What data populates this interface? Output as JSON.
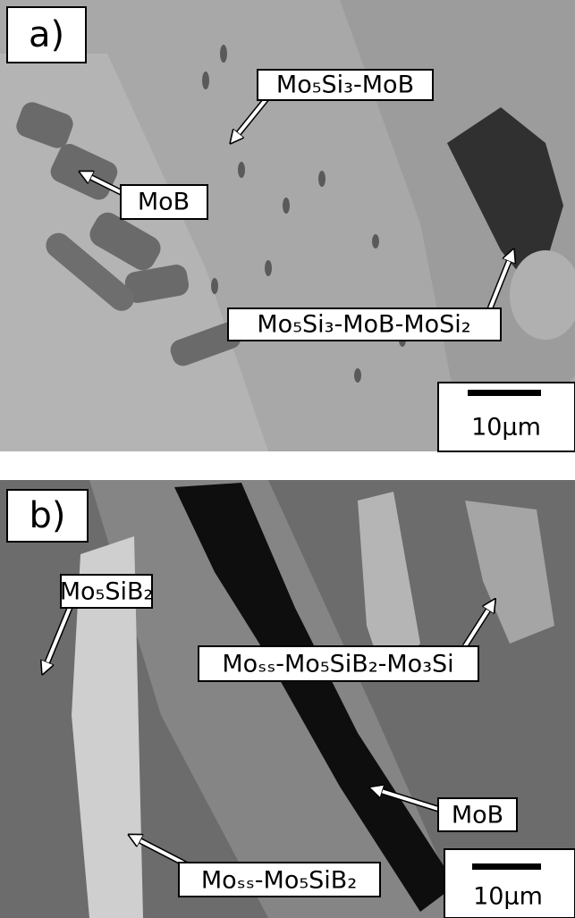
{
  "panels": [
    {
      "tag": "a)",
      "labels": [
        "Mo₅Si₃-MoB",
        "MoB",
        "Mo₅Si₃-MoB-MoSi₂"
      ],
      "scale_bar": "10µm"
    },
    {
      "tag": "b)",
      "labels": [
        "Mo₅SiB₂",
        "Moₛₛ-Mo₅SiB₂-Mo₃Si",
        "MoB",
        "Moₛₛ-Mo₅SiB₂"
      ],
      "scale_bar": "10µm"
    }
  ]
}
